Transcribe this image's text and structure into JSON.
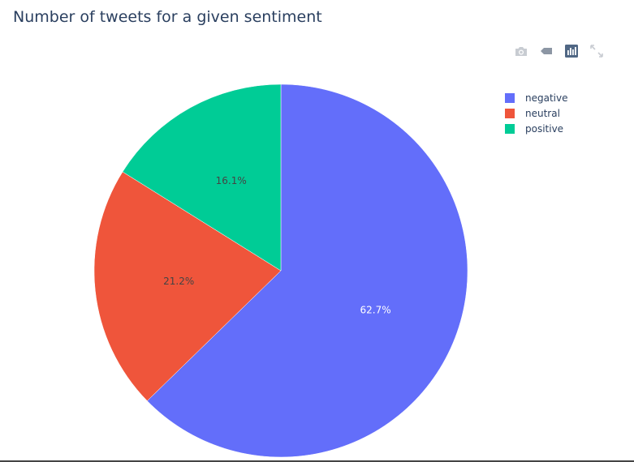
{
  "chart_data": {
    "type": "pie",
    "title": "Number of tweets for a given sentiment",
    "slices": [
      {
        "label": "negative",
        "percent": 62.7,
        "percent_label": "62.7%",
        "color": "#636efa"
      },
      {
        "label": "neutral",
        "percent": 21.2,
        "percent_label": "21.2%",
        "color": "#ef553b"
      },
      {
        "label": "positive",
        "percent": 16.1,
        "percent_label": "16.1%",
        "color": "#00cc96"
      }
    ],
    "legend_position": "top-right",
    "sort": "descending",
    "direction": "clockwise"
  },
  "modebar": {
    "buttons": [
      {
        "name": "camera-icon",
        "action": "download-plot"
      },
      {
        "name": "tag-icon",
        "action": "toggle-hover-labels"
      },
      {
        "name": "plotly-logo-icon",
        "action": "produced-with-plotly"
      },
      {
        "name": "expand-icon",
        "action": "fullscreen"
      }
    ]
  },
  "colors": {
    "text": "#2a3f5f",
    "modebar_icon": "#c8ccd2",
    "logo_bg": "#506784"
  }
}
